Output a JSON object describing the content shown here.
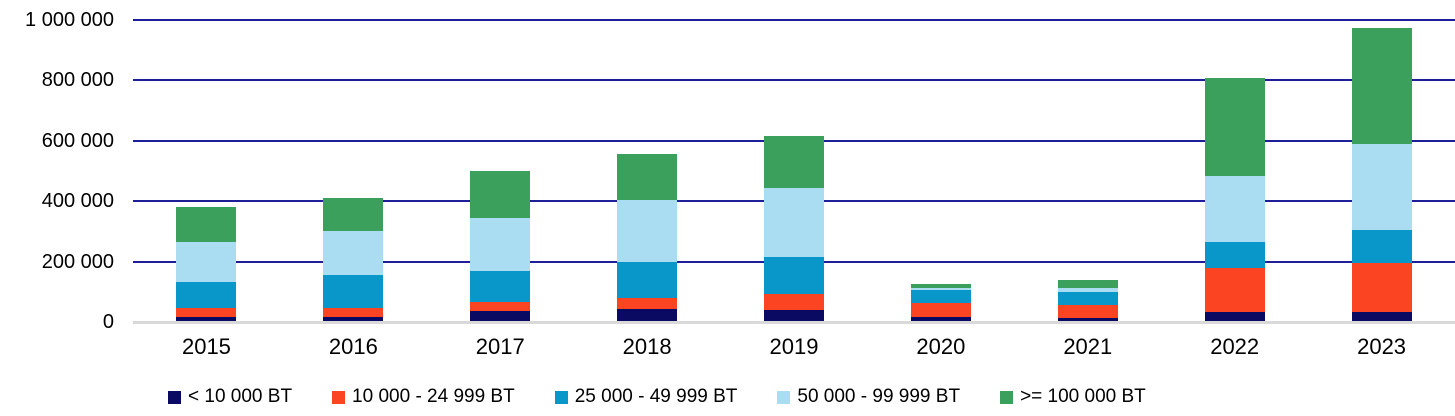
{
  "chart_data": {
    "type": "bar",
    "stacked": true,
    "title": "",
    "xlabel": "",
    "ylabel": "",
    "categories": [
      "2015",
      "2016",
      "2017",
      "2018",
      "2019",
      "2020",
      "2021",
      "2022",
      "2023"
    ],
    "series": [
      {
        "name": "< 10 000 BT",
        "color": "#0A0A62",
        "values": [
          15000,
          18000,
          36000,
          42000,
          39000,
          17000,
          14000,
          34000,
          33000
        ]
      },
      {
        "name": "10 000 - 24 999 BT",
        "color": "#FB4522",
        "values": [
          33000,
          28000,
          31000,
          38000,
          53000,
          46000,
          43000,
          145000,
          162000
        ]
      },
      {
        "name": "25 000 - 49 999 BT",
        "color": "#0997CA",
        "values": [
          85000,
          109000,
          103000,
          120000,
          123000,
          42000,
          44000,
          86000,
          110000
        ]
      },
      {
        "name": "50 000 - 99 999 BT",
        "color": "#AADCF2",
        "values": [
          132000,
          145000,
          175000,
          205000,
          230000,
          7000,
          12000,
          217000,
          285000
        ]
      },
      {
        "name": ">= 100 000 BT",
        "color": "#3AA05C",
        "values": [
          115000,
          110000,
          155000,
          152000,
          170000,
          15000,
          27000,
          325000,
          383000
        ]
      }
    ],
    "y_axis": {
      "min": 0,
      "max": 1000000,
      "step": 200000,
      "tick_labels": [
        "0",
        "200 000",
        "400 000",
        "600 000",
        "800 000",
        "1 000 000"
      ]
    },
    "grid": true,
    "legend_position": "bottom",
    "colors": {
      "gridline": "#1E1E99",
      "baseline": "#D9D9D9",
      "text": "#000000"
    }
  }
}
